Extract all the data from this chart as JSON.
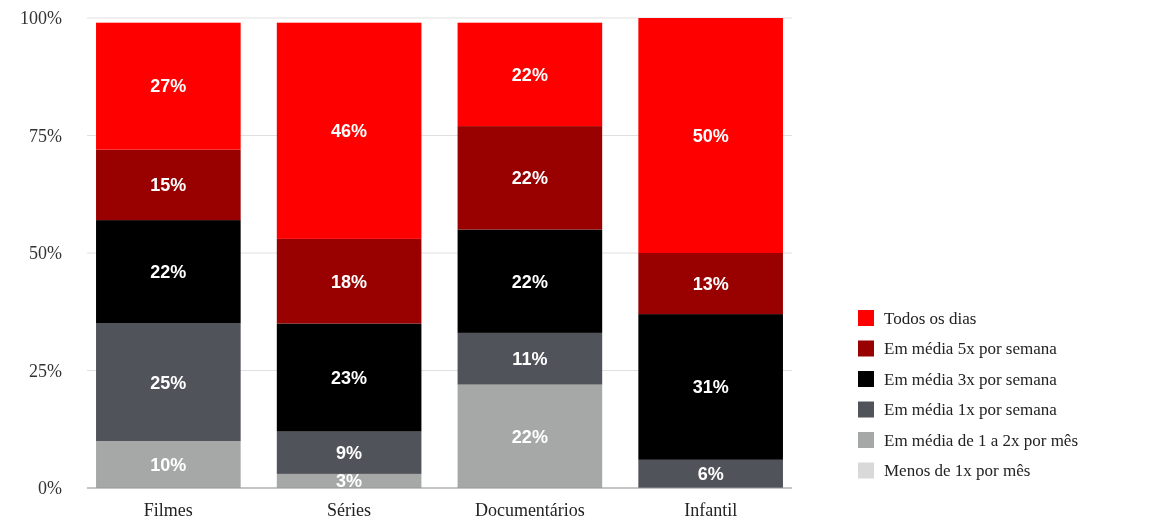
{
  "chart_data": {
    "type": "bar",
    "stacked": true,
    "categories": [
      "Filmes",
      "Séries",
      "Documentários",
      "Infantil"
    ],
    "series": [
      {
        "name": "Menos de 1x por mês",
        "color": "#d9d9d9",
        "values": [
          0,
          0,
          0,
          0
        ],
        "value_labels": [
          null,
          null,
          null,
          null
        ]
      },
      {
        "name": "Em média de 1 a 2x por mês",
        "color": "#a6a8a8",
        "values": [
          10,
          3,
          22,
          0
        ],
        "value_labels": [
          "10%",
          "3%",
          "22%",
          null
        ]
      },
      {
        "name": "Em média 1x por semana",
        "color": "#50535a",
        "values": [
          25,
          9,
          11,
          6
        ],
        "value_labels": [
          "25%",
          "9%",
          "11%",
          "6%"
        ]
      },
      {
        "name": "Em média 3x por semana",
        "color": "#000000",
        "values": [
          22,
          23,
          22,
          31
        ],
        "value_labels": [
          "22%",
          "23%",
          "22%",
          "31%"
        ]
      },
      {
        "name": "Em média 5x por semana",
        "color": "#990000",
        "values": [
          15,
          18,
          22,
          13
        ],
        "value_labels": [
          "15%",
          "18%",
          "22%",
          "13%"
        ]
      },
      {
        "name": "Todos os dias",
        "color": "#ff0000",
        "values": [
          27,
          46,
          22,
          50
        ],
        "value_labels": [
          "27%",
          "46%",
          "22%",
          "50%"
        ]
      }
    ],
    "ylim": [
      0,
      100
    ],
    "yticks": [
      {
        "value": 0,
        "label": "0%"
      },
      {
        "value": 25,
        "label": "25%"
      },
      {
        "value": 50,
        "label": "50%"
      },
      {
        "value": 75,
        "label": "75%"
      },
      {
        "value": 100,
        "label": "100%"
      }
    ],
    "grid": "y",
    "legend": "right"
  }
}
